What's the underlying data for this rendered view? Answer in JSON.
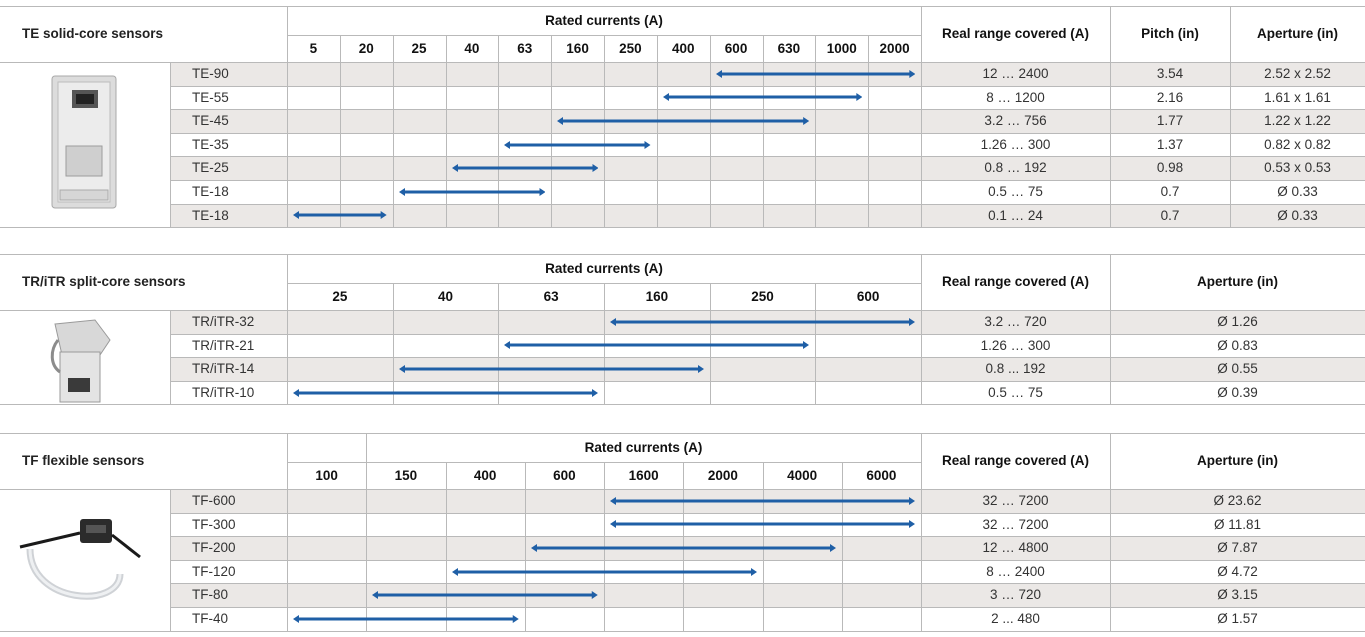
{
  "sections": [
    {
      "title": "TE solid-core sensors",
      "rated_header": "Rated currents (A)",
      "currents": [
        "5",
        "20",
        "25",
        "40",
        "63",
        "160",
        "250",
        "400",
        "600",
        "630",
        "1000",
        "2000"
      ],
      "extra_headers": [
        "Real range covered (A)",
        "Pitch (in)",
        "Aperture (in)"
      ],
      "image_name": "te-sensor-image",
      "rows": [
        {
          "name": "TE-90",
          "range": [
            8,
            11
          ],
          "values": [
            "12 … 2400",
            "3.54",
            "2.52 x 2.52"
          ]
        },
        {
          "name": "TE-55",
          "range": [
            7,
            10
          ],
          "values": [
            "8 … 1200",
            "2.16",
            "1.61 x 1.61"
          ]
        },
        {
          "name": "TE-45",
          "range": [
            5,
            9
          ],
          "values": [
            "3.2 … 756",
            "1.77",
            "1.22 x 1.22"
          ]
        },
        {
          "name": "TE-35",
          "range": [
            4,
            6
          ],
          "values": [
            "1.26 … 300",
            "1.37",
            "0.82 x 0.82"
          ]
        },
        {
          "name": "TE-25",
          "range": [
            3,
            5
          ],
          "values": [
            "0.8 … 192",
            "0.98",
            "0.53 x 0.53"
          ]
        },
        {
          "name": "TE-18",
          "range": [
            2,
            4
          ],
          "values": [
            "0.5 … 75",
            "0.7",
            "Ø 0.33"
          ]
        },
        {
          "name": "TE-18",
          "range": [
            0,
            1
          ],
          "values": [
            "0.1 … 24",
            "0.7",
            "Ø 0.33"
          ]
        }
      ]
    },
    {
      "title": "TR/iTR split-core sensors",
      "rated_header": "Rated currents (A)",
      "currents": [
        "25",
        "40",
        "63",
        "160",
        "250",
        "600"
      ],
      "extra_headers": [
        "Real range covered (A)",
        "Aperture (in)"
      ],
      "image_name": "tr-sensor-image",
      "rows": [
        {
          "name": "TR/iTR-32",
          "range": [
            3,
            5
          ],
          "values": [
            "3.2 … 720",
            "Ø 1.26"
          ]
        },
        {
          "name": "TR/iTR-21",
          "range": [
            2,
            4
          ],
          "values": [
            "1.26 … 300",
            "Ø 0.83"
          ]
        },
        {
          "name": "TR/iTR-14",
          "range": [
            1,
            3
          ],
          "values": [
            "0.8 ... 192",
            "Ø 0.55"
          ]
        },
        {
          "name": "TR/iTR-10",
          "range": [
            0,
            2
          ],
          "values": [
            "0.5 … 75",
            "Ø 0.39"
          ]
        }
      ]
    },
    {
      "title": "TF flexible sensors",
      "rated_header": "Rated currents (A)",
      "currents": [
        "100",
        "150",
        "400",
        "600",
        "1600",
        "2000",
        "4000",
        "6000"
      ],
      "extra_headers": [
        "Real range covered (A)",
        "Aperture (in)"
      ],
      "image_name": "tf-sensor-image",
      "rows": [
        {
          "name": "TF-600",
          "range": [
            4,
            7
          ],
          "values": [
            "32 … 7200",
            "Ø 23.62"
          ]
        },
        {
          "name": "TF-300",
          "range": [
            4,
            7
          ],
          "values": [
            "32 … 7200",
            "Ø 11.81"
          ]
        },
        {
          "name": "TF-200",
          "range": [
            3,
            6
          ],
          "values": [
            "12 … 4800",
            "Ø 7.87"
          ]
        },
        {
          "name": "TF-120",
          "range": [
            2,
            5
          ],
          "values": [
            "8 … 2400",
            "Ø 4.72"
          ]
        },
        {
          "name": "TF-80",
          "range": [
            1,
            3
          ],
          "values": [
            "3 … 720",
            "Ø 3.15"
          ]
        },
        {
          "name": "TF-40",
          "range": [
            0,
            2
          ],
          "values": [
            "2 ... 480",
            "Ø 1.57"
          ]
        }
      ]
    }
  ],
  "colors": {
    "arrow": "#1f5fa6",
    "row_even": "#ffffff",
    "row_odd": "#ebe8e6",
    "header_bg": "#ffffff",
    "line": "#b9b9b9"
  }
}
